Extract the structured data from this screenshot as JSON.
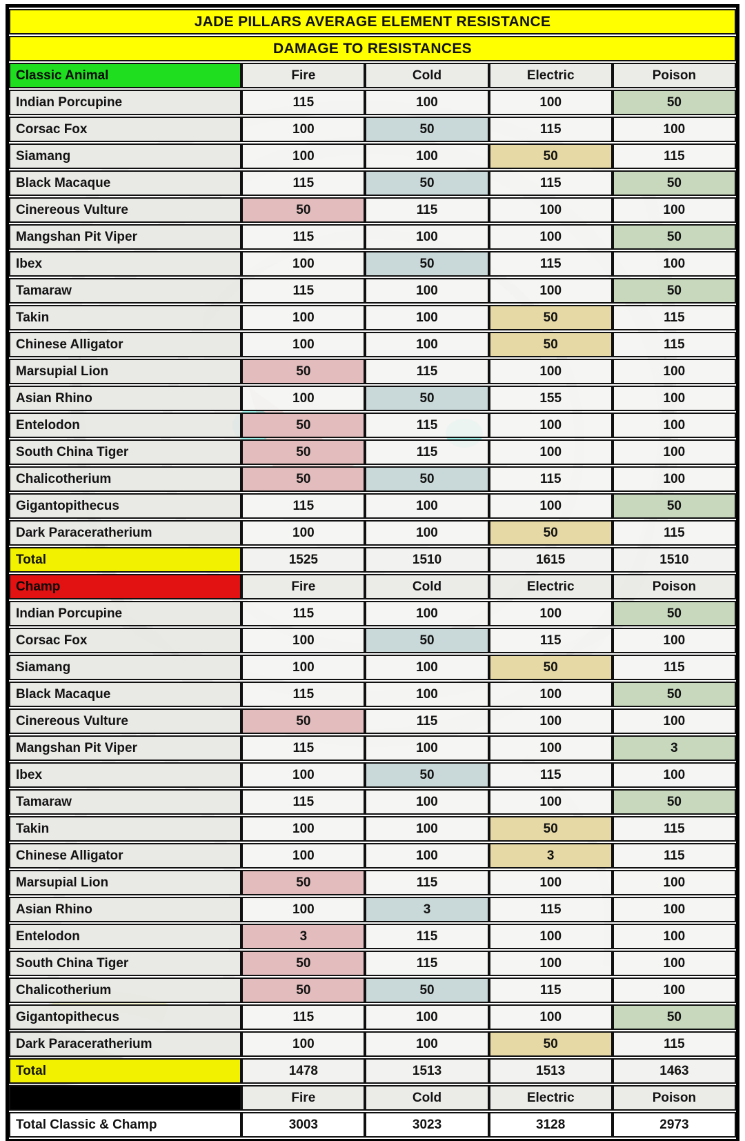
{
  "title": "JADE PILLARS AVERAGE ELEMENT RESISTANCE",
  "subtitle": "DAMAGE TO RESISTANCES",
  "columns": [
    "Fire",
    "Cold",
    "Electric",
    "Poison"
  ],
  "sections": [
    {
      "key": "classic",
      "header": "Classic Animal",
      "header_color": "#1fdd1f",
      "rows": [
        {
          "name": "Indian Porcupine",
          "values": [
            115,
            100,
            100,
            50
          ]
        },
        {
          "name": "Corsac Fox",
          "values": [
            100,
            50,
            115,
            100
          ]
        },
        {
          "name": "Siamang",
          "values": [
            100,
            100,
            50,
            115
          ]
        },
        {
          "name": "Black Macaque",
          "values": [
            115,
            50,
            115,
            50
          ]
        },
        {
          "name": "Cinereous Vulture",
          "values": [
            50,
            115,
            100,
            100
          ]
        },
        {
          "name": "Mangshan Pit Viper",
          "values": [
            115,
            100,
            100,
            50
          ]
        },
        {
          "name": "Ibex",
          "values": [
            100,
            50,
            115,
            100
          ]
        },
        {
          "name": "Tamaraw",
          "values": [
            115,
            100,
            100,
            50
          ]
        },
        {
          "name": "Takin",
          "values": [
            100,
            100,
            50,
            115
          ]
        },
        {
          "name": "Chinese Alligator",
          "values": [
            100,
            100,
            50,
            115
          ]
        },
        {
          "name": "Marsupial Lion",
          "values": [
            50,
            115,
            100,
            100
          ]
        },
        {
          "name": "Asian Rhino",
          "values": [
            100,
            50,
            155,
            100
          ]
        },
        {
          "name": "Entelodon",
          "values": [
            50,
            115,
            100,
            100
          ]
        },
        {
          "name": "South China Tiger",
          "values": [
            50,
            115,
            100,
            100
          ]
        },
        {
          "name": "Chalicotherium",
          "values": [
            50,
            50,
            115,
            100
          ]
        },
        {
          "name": "Gigantopithecus",
          "values": [
            115,
            100,
            100,
            50
          ]
        },
        {
          "name": "Dark Paraceratherium",
          "values": [
            100,
            100,
            50,
            115
          ]
        }
      ],
      "total_label": "Total",
      "totals": [
        1525,
        1510,
        1615,
        1510
      ]
    },
    {
      "key": "champ",
      "header": "Champ",
      "header_color": "#e31212",
      "rows": [
        {
          "name": "Indian Porcupine",
          "values": [
            115,
            100,
            100,
            50
          ]
        },
        {
          "name": "Corsac Fox",
          "values": [
            100,
            50,
            115,
            100
          ]
        },
        {
          "name": "Siamang",
          "values": [
            100,
            100,
            50,
            115
          ]
        },
        {
          "name": "Black Macaque",
          "values": [
            115,
            100,
            100,
            50
          ]
        },
        {
          "name": "Cinereous Vulture",
          "values": [
            50,
            115,
            100,
            100
          ]
        },
        {
          "name": "Mangshan Pit Viper",
          "values": [
            115,
            100,
            100,
            3
          ]
        },
        {
          "name": "Ibex",
          "values": [
            100,
            50,
            115,
            100
          ]
        },
        {
          "name": "Tamaraw",
          "values": [
            115,
            100,
            100,
            50
          ]
        },
        {
          "name": "Takin",
          "values": [
            100,
            100,
            50,
            115
          ]
        },
        {
          "name": "Chinese Alligator",
          "values": [
            100,
            100,
            3,
            115
          ]
        },
        {
          "name": "Marsupial Lion",
          "values": [
            50,
            115,
            100,
            100
          ]
        },
        {
          "name": "Asian Rhino",
          "values": [
            100,
            3,
            115,
            100
          ]
        },
        {
          "name": "Entelodon",
          "values": [
            3,
            115,
            100,
            100
          ]
        },
        {
          "name": "South China Tiger",
          "values": [
            50,
            115,
            100,
            100
          ]
        },
        {
          "name": "Chalicotherium",
          "values": [
            50,
            50,
            115,
            100
          ]
        },
        {
          "name": "Gigantopithecus",
          "values": [
            115,
            100,
            100,
            50
          ]
        },
        {
          "name": "Dark Paraceratherium",
          "values": [
            100,
            100,
            50,
            115
          ]
        }
      ],
      "total_label": "Total",
      "totals": [
        1478,
        1513,
        1513,
        1463
      ]
    }
  ],
  "grand": {
    "label": "Total Classic & Champ",
    "totals": [
      3003,
      3023,
      3128,
      2973
    ]
  },
  "colors": {
    "title_bg": "#ffff00",
    "total_bg": "#f2f200",
    "classic_header_bg": "#1fdd1f",
    "champ_header_bg": "#e31212",
    "fire_tint": "#e3bdbd",
    "cold_tint": "#c9d8d9",
    "electric_tint": "#e6d9a5",
    "poison_tint": "#c7d8bd",
    "black_cell": "#000000"
  }
}
